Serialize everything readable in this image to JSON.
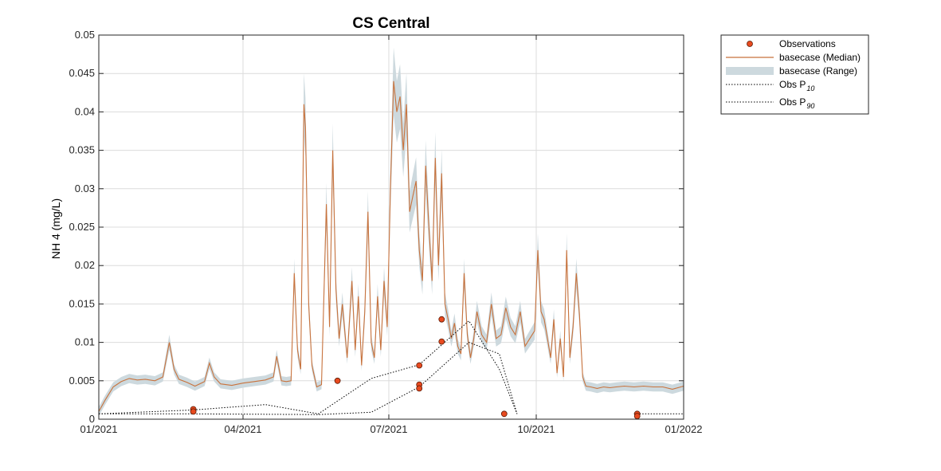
{
  "chart_data": {
    "type": "line",
    "title": "CS Central",
    "xlabel": "",
    "ylabel": "NH 4 (mg/L)",
    "x_ticks": [
      "01/2021",
      "04/2021",
      "07/2021",
      "10/2021",
      "01/2022"
    ],
    "y_ticks": [
      "0",
      "0.005",
      "0.01",
      "0.015",
      "0.02",
      "0.025",
      "0.03",
      "0.035",
      "0.04",
      "0.045",
      "0.05"
    ],
    "xlim": [
      "2021-01-01",
      "2022-01-01"
    ],
    "ylim": [
      0,
      0.05
    ],
    "grid": true,
    "legend_position": "outside-top-right",
    "colors": {
      "median": "#c8723c",
      "range": "#cdd9de",
      "observations_fill": "#e84a1f",
      "observations_edge": "#5a1a05",
      "percentile": "#000000"
    },
    "legend": [
      {
        "label": "Observations",
        "sub": ""
      },
      {
        "label": "basecase (Median)",
        "sub": ""
      },
      {
        "label": "basecase (Range)",
        "sub": ""
      },
      {
        "label": "Obs P",
        "sub": "10"
      },
      {
        "label": "Obs P",
        "sub": "90"
      }
    ],
    "series": [
      {
        "name": "basecase (Median)",
        "x": [
          "2021-01-01",
          "2021-01-05",
          "2021-01-10",
          "2021-01-15",
          "2021-01-20",
          "2021-01-25",
          "2021-01-30",
          "2021-02-05",
          "2021-02-10",
          "2021-02-14",
          "2021-02-17",
          "2021-02-20",
          "2021-02-25",
          "2021-03-02",
          "2021-03-08",
          "2021-03-11",
          "2021-03-14",
          "2021-03-18",
          "2021-03-25",
          "2021-04-01",
          "2021-04-08",
          "2021-04-15",
          "2021-04-20",
          "2021-04-22",
          "2021-04-25",
          "2021-04-28",
          "2021-05-01",
          "2021-05-03",
          "2021-05-05",
          "2021-05-07",
          "2021-05-09",
          "2021-05-10",
          "2021-05-12",
          "2021-05-14",
          "2021-05-17",
          "2021-05-20",
          "2021-05-23",
          "2021-05-25",
          "2021-05-27",
          "2021-05-29",
          "2021-05-31",
          "2021-06-02",
          "2021-06-05",
          "2021-06-08",
          "2021-06-10",
          "2021-06-12",
          "2021-06-14",
          "2021-06-16",
          "2021-06-18",
          "2021-06-20",
          "2021-06-22",
          "2021-06-24",
          "2021-06-26",
          "2021-06-28",
          "2021-06-30",
          "2021-07-02",
          "2021-07-04",
          "2021-07-06",
          "2021-07-08",
          "2021-07-10",
          "2021-07-12",
          "2021-07-14",
          "2021-07-16",
          "2021-07-18",
          "2021-07-20",
          "2021-07-22",
          "2021-07-24",
          "2021-07-26",
          "2021-07-28",
          "2021-07-30",
          "2021-08-01",
          "2021-08-03",
          "2021-08-05",
          "2021-08-07",
          "2021-08-09",
          "2021-08-11",
          "2021-08-13",
          "2021-08-15",
          "2021-08-17",
          "2021-08-19",
          "2021-08-21",
          "2021-08-23",
          "2021-08-25",
          "2021-08-28",
          "2021-08-31",
          "2021-09-03",
          "2021-09-06",
          "2021-09-09",
          "2021-09-12",
          "2021-09-15",
          "2021-09-18",
          "2021-09-21",
          "2021-09-24",
          "2021-09-27",
          "2021-09-30",
          "2021-10-02",
          "2021-10-04",
          "2021-10-06",
          "2021-10-08",
          "2021-10-10",
          "2021-10-12",
          "2021-10-14",
          "2021-10-16",
          "2021-10-18",
          "2021-10-20",
          "2021-10-22",
          "2021-10-24",
          "2021-10-26",
          "2021-10-28",
          "2021-10-30",
          "2021-11-01",
          "2021-11-04",
          "2021-11-08",
          "2021-11-12",
          "2021-11-16",
          "2021-11-20",
          "2021-11-25",
          "2021-12-01",
          "2021-12-07",
          "2021-12-13",
          "2021-12-19",
          "2021-12-25",
          "2022-01-01"
        ],
        "values": [
          0.001,
          0.0025,
          0.0042,
          0.0049,
          0.0053,
          0.0051,
          0.0052,
          0.005,
          0.0055,
          0.01,
          0.0065,
          0.0052,
          0.0048,
          0.0043,
          0.0049,
          0.0073,
          0.0055,
          0.0046,
          0.0044,
          0.0047,
          0.0049,
          0.0051,
          0.0055,
          0.0082,
          0.005,
          0.0049,
          0.005,
          0.019,
          0.009,
          0.0065,
          0.041,
          0.038,
          0.015,
          0.007,
          0.0042,
          0.0045,
          0.028,
          0.012,
          0.035,
          0.017,
          0.0105,
          0.015,
          0.008,
          0.018,
          0.009,
          0.016,
          0.007,
          0.014,
          0.027,
          0.01,
          0.008,
          0.016,
          0.009,
          0.018,
          0.012,
          0.03,
          0.044,
          0.04,
          0.042,
          0.035,
          0.041,
          0.027,
          0.029,
          0.031,
          0.022,
          0.018,
          0.033,
          0.025,
          0.018,
          0.034,
          0.02,
          0.032,
          0.015,
          0.013,
          0.0105,
          0.0125,
          0.0095,
          0.0085,
          0.019,
          0.011,
          0.008,
          0.0105,
          0.014,
          0.011,
          0.01,
          0.015,
          0.0105,
          0.011,
          0.0145,
          0.012,
          0.011,
          0.014,
          0.0095,
          0.0105,
          0.0115,
          0.022,
          0.014,
          0.013,
          0.0105,
          0.008,
          0.013,
          0.006,
          0.0105,
          0.0055,
          0.022,
          0.008,
          0.012,
          0.019,
          0.0135,
          0.0055,
          0.0043,
          0.0042,
          0.004,
          0.0042,
          0.0041,
          0.0042,
          0.0043,
          0.0042,
          0.0043,
          0.0042,
          0.0042,
          0.0039,
          0.0043
        ]
      },
      {
        "name": "Obs P",
        "x": [
          "2021-01-01",
          "2021-03-01",
          "2021-04-15",
          "2021-05-18",
          "2021-06-20",
          "2021-07-20",
          "2021-08-20",
          "2021-09-08",
          "2021-09-19"
        ],
        "values": [
          0.0007,
          0.0012,
          0.0019,
          0.0007,
          0.0053,
          0.0071,
          0.0128,
          0.0065,
          0.0007
        ]
      },
      {
        "name": "Obs P",
        "x": [
          "2021-01-01",
          "2021-03-01",
          "2021-05-18",
          "2021-06-20",
          "2021-07-20",
          "2021-08-20",
          "2021-09-08",
          "2021-09-19"
        ],
        "values": [
          0.0007,
          0.0007,
          0.0006,
          0.0009,
          0.0042,
          0.01,
          0.0085,
          0.0007
        ]
      },
      {
        "name": "Obs P",
        "x": [
          "2021-12-01",
          "2022-01-01"
        ],
        "values": [
          0.0007,
          0.0007
        ]
      },
      {
        "name": "Observations",
        "x": [
          "2021-03-01",
          "2021-03-01",
          "2021-05-30",
          "2021-07-20",
          "2021-07-20",
          "2021-07-20",
          "2021-08-03",
          "2021-08-03",
          "2021-09-11",
          "2021-12-03",
          "2021-12-03"
        ],
        "values": [
          0.0013,
          0.001,
          0.005,
          0.007,
          0.0045,
          0.004,
          0.013,
          0.0101,
          0.0007,
          0.0007,
          0.0004
        ]
      }
    ]
  }
}
